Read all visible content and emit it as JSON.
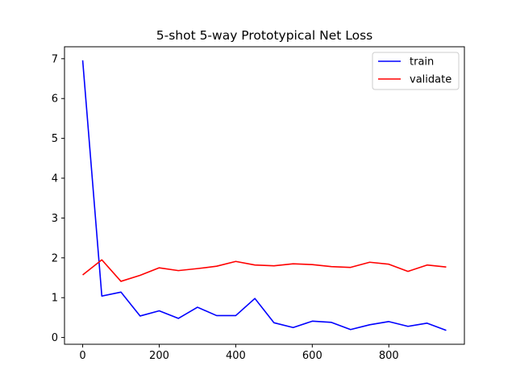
{
  "chart_data": {
    "type": "line",
    "title": "5-shot 5-way Prototypical Net Loss",
    "xlabel": "",
    "ylabel": "",
    "x": [
      0,
      50,
      100,
      150,
      200,
      250,
      300,
      350,
      400,
      450,
      500,
      550,
      600,
      650,
      700,
      750,
      800,
      850,
      900,
      950
    ],
    "series": [
      {
        "name": "train",
        "color": "#0000ff",
        "values": [
          6.96,
          1.04,
          1.14,
          0.54,
          0.67,
          0.48,
          0.76,
          0.55,
          0.55,
          0.98,
          0.37,
          0.25,
          0.41,
          0.38,
          0.2,
          0.32,
          0.4,
          0.28,
          0.36,
          0.18
        ]
      },
      {
        "name": "validate",
        "color": "#ff0000",
        "values": [
          1.57,
          1.95,
          1.41,
          1.56,
          1.75,
          1.68,
          1.73,
          1.79,
          1.91,
          1.82,
          1.8,
          1.85,
          1.83,
          1.78,
          1.76,
          1.89,
          1.84,
          1.66,
          1.82,
          1.77
        ]
      }
    ],
    "xlim": [
      -47.5,
      997.5
    ],
    "ylim": [
      -0.17,
      7.3
    ],
    "xticks": [
      0,
      200,
      400,
      600,
      800
    ],
    "yticks": [
      0,
      1,
      2,
      3,
      4,
      5,
      6,
      7
    ],
    "grid": false,
    "legend_position": "top-right"
  }
}
